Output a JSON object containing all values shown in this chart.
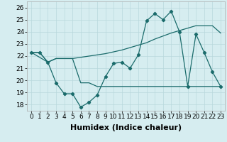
{
  "xlabel": "Humidex (Indice chaleur)",
  "background_color": "#d6edf0",
  "grid_color": "#b8d8dc",
  "line_color": "#1a6b6b",
  "ylim": [
    17.5,
    26.5
  ],
  "xlim": [
    -0.5,
    23.5
  ],
  "yticks": [
    18,
    19,
    20,
    21,
    22,
    23,
    24,
    25,
    26
  ],
  "xticks": [
    0,
    1,
    2,
    3,
    4,
    5,
    6,
    7,
    8,
    9,
    10,
    11,
    12,
    13,
    14,
    15,
    16,
    17,
    18,
    19,
    20,
    21,
    22,
    23
  ],
  "series1_x": [
    0,
    1,
    2,
    3,
    4,
    5,
    6,
    7,
    8,
    9,
    10,
    11,
    12,
    13,
    14,
    15,
    16,
    17,
    18,
    19,
    20,
    21,
    22,
    23
  ],
  "series1_y": [
    22.3,
    22.3,
    21.5,
    21.8,
    21.8,
    21.8,
    21.9,
    22.0,
    22.1,
    22.2,
    22.35,
    22.5,
    22.7,
    22.9,
    23.1,
    23.4,
    23.65,
    23.9,
    24.1,
    24.3,
    24.5,
    24.5,
    24.5,
    23.9
  ],
  "series2_x": [
    0,
    1,
    2,
    3,
    4,
    5,
    6,
    7,
    8,
    9,
    10,
    11,
    12,
    13,
    14,
    15,
    16,
    17,
    18,
    19,
    20,
    21,
    22,
    23
  ],
  "series2_y": [
    22.3,
    22.3,
    21.5,
    19.8,
    18.9,
    18.9,
    17.8,
    18.2,
    18.8,
    20.3,
    21.4,
    21.5,
    21.0,
    22.1,
    24.9,
    25.5,
    25.0,
    25.7,
    24.0,
    19.5,
    23.8,
    22.3,
    20.7,
    19.5
  ],
  "series3_x": [
    0,
    2,
    3,
    4,
    5,
    6,
    7,
    8,
    9,
    10,
    11,
    12,
    13,
    14,
    15,
    16,
    17,
    18,
    19,
    20,
    21,
    22,
    23
  ],
  "series3_y": [
    22.3,
    21.5,
    21.8,
    21.8,
    21.8,
    19.8,
    19.8,
    19.5,
    19.5,
    19.5,
    19.5,
    19.5,
    19.5,
    19.5,
    19.5,
    19.5,
    19.5,
    19.5,
    19.5,
    19.5,
    19.5,
    19.5,
    19.5
  ],
  "tick_fontsize": 6.5,
  "label_fontsize": 8
}
